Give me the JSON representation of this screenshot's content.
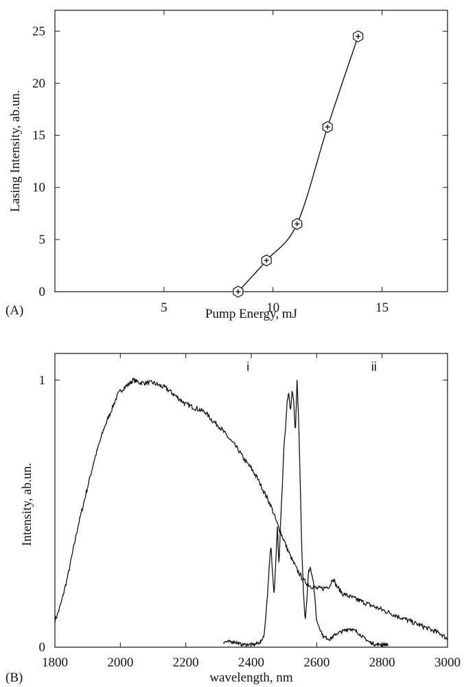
{
  "chart_data": [
    {
      "panel": "(A)",
      "type": "line",
      "title": "",
      "xlabel": "Pump Energy, mJ",
      "ylabel": "Lasing Intensity, ab.un.",
      "xlim": [
        0,
        18
      ],
      "ylim": [
        0,
        27
      ],
      "x_ticks": [
        5,
        10,
        15
      ],
      "y_ticks": [
        0,
        5,
        10,
        15,
        20,
        25
      ],
      "grid": false,
      "marker": "hexagon-cross",
      "series": [
        {
          "x": [
            8.4,
            9.7,
            11.1,
            12.5,
            13.9
          ],
          "y": [
            0,
            3.0,
            6.5,
            15.8,
            24.5
          ]
        }
      ]
    },
    {
      "panel": "(B)",
      "type": "line",
      "title": "",
      "xlabel": "wavelength, nm",
      "ylabel": "Intensity, ab.un.",
      "xlim": [
        1800,
        3000
      ],
      "ylim": [
        0,
        1.1
      ],
      "x_ticks": [
        1800,
        2000,
        2200,
        2400,
        2600,
        2800,
        3000
      ],
      "y_ticks": [
        0,
        1
      ],
      "grid": false,
      "annotations": [
        {
          "text": "i",
          "x": 2390,
          "y": 1.05
        },
        {
          "text": "ii",
          "x": 2775,
          "y": 1.05
        }
      ],
      "series": [
        {
          "x": [
            1800,
            1810,
            1820,
            1830,
            1840,
            1850,
            1860,
            1870,
            1880,
            1890,
            1900,
            1910,
            1920,
            1930,
            1940,
            1950,
            1960,
            1970,
            1980,
            1990,
            2000,
            2020,
            2040,
            2060,
            2080,
            2100,
            2120,
            2140,
            2160,
            2180,
            2200,
            2220,
            2240,
            2260,
            2280,
            2300,
            2320,
            2340,
            2360,
            2380,
            2400,
            2420,
            2440,
            2460,
            2480,
            2500,
            2520,
            2540,
            2560,
            2580,
            2600,
            2620,
            2640,
            2650,
            2660,
            2680,
            2700,
            2720,
            2740,
            2760,
            2780,
            2800,
            2820,
            2840,
            2860,
            2880,
            2900,
            2920,
            2940,
            2960,
            2980,
            3000
          ],
          "y": [
            0.1,
            0.13,
            0.17,
            0.22,
            0.27,
            0.33,
            0.39,
            0.45,
            0.5,
            0.55,
            0.6,
            0.65,
            0.7,
            0.74,
            0.78,
            0.82,
            0.85,
            0.88,
            0.91,
            0.94,
            0.96,
            0.98,
            1.0,
            0.99,
            0.99,
            0.99,
            0.98,
            0.97,
            0.95,
            0.93,
            0.91,
            0.9,
            0.89,
            0.88,
            0.85,
            0.83,
            0.8,
            0.77,
            0.74,
            0.7,
            0.67,
            0.63,
            0.58,
            0.53,
            0.46,
            0.4,
            0.34,
            0.29,
            0.25,
            0.23,
            0.22,
            0.22,
            0.23,
            0.26,
            0.23,
            0.2,
            0.19,
            0.18,
            0.17,
            0.16,
            0.15,
            0.14,
            0.13,
            0.12,
            0.11,
            0.1,
            0.09,
            0.08,
            0.07,
            0.06,
            0.05,
            0.03
          ]
        },
        {
          "x": [
            2315,
            2330,
            2350,
            2370,
            2390,
            2410,
            2430,
            2440,
            2450,
            2455,
            2460,
            2465,
            2470,
            2475,
            2480,
            2485,
            2490,
            2495,
            2500,
            2505,
            2510,
            2515,
            2520,
            2525,
            2530,
            2535,
            2540,
            2545,
            2550,
            2555,
            2560,
            2565,
            2570,
            2575,
            2580,
            2590,
            2600,
            2620,
            2640,
            2660,
            2680,
            2700,
            2720,
            2740,
            2760,
            2780,
            2800,
            2820
          ],
          "y": [
            0.02,
            0.02,
            0.02,
            0.01,
            0.01,
            0.01,
            0.02,
            0.05,
            0.2,
            0.3,
            0.38,
            0.28,
            0.2,
            0.32,
            0.45,
            0.3,
            0.48,
            0.6,
            0.75,
            0.82,
            0.92,
            0.95,
            0.88,
            0.96,
            0.92,
            0.8,
            1.0,
            0.85,
            0.6,
            0.35,
            0.2,
            0.1,
            0.18,
            0.28,
            0.3,
            0.25,
            0.1,
            0.04,
            0.03,
            0.05,
            0.06,
            0.07,
            0.06,
            0.04,
            0.02,
            0.01,
            0.01,
            0.01
          ]
        }
      ]
    }
  ]
}
